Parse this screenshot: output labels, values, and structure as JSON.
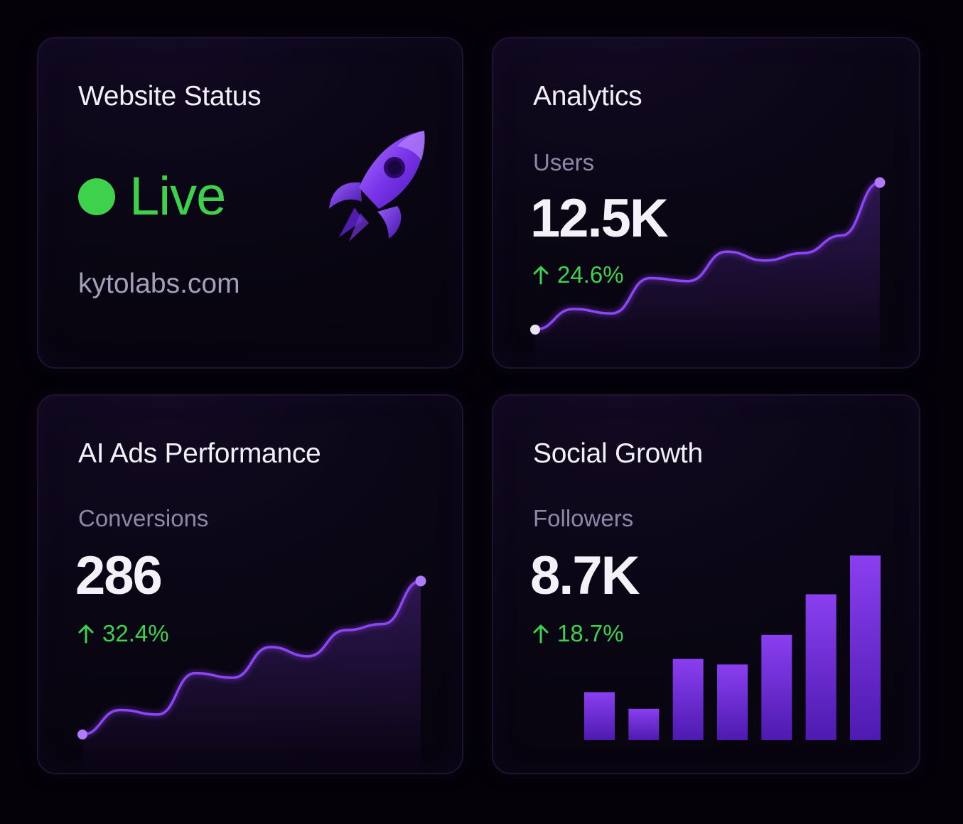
{
  "cards": {
    "status": {
      "title": "Website Status",
      "status_text": "Live",
      "status_color": "#3ed14c",
      "domain": "kytolabs.com",
      "icon": "rocket-icon"
    },
    "analytics": {
      "title": "Analytics",
      "metric_label": "Users",
      "metric_value": "12.5K",
      "delta": "24.6%",
      "delta_direction": "up",
      "delta_icon": "arrow-up-icon"
    },
    "ads": {
      "title": "AI Ads Performance",
      "metric_label": "Conversions",
      "metric_value": "286",
      "delta": "32.4%",
      "delta_direction": "up",
      "delta_icon": "arrow-up-icon"
    },
    "social": {
      "title": "Social Growth",
      "metric_label": "Followers",
      "metric_value": "8.7K",
      "delta": "18.7%",
      "delta_direction": "up",
      "delta_icon": "arrow-up-icon"
    }
  },
  "colors": {
    "accent": "#8a3ff0",
    "positive": "#3ed14c",
    "background": "#040208"
  },
  "chart_data": [
    {
      "type": "line",
      "card": "analytics",
      "x": [
        0,
        1,
        2,
        3,
        4,
        5,
        6,
        7,
        8,
        9
      ],
      "values": [
        0,
        14,
        11,
        35,
        33,
        53,
        47,
        52,
        64,
        100
      ],
      "ylim": [
        0,
        100
      ],
      "grid": false
    },
    {
      "type": "line",
      "card": "ads",
      "x": [
        0,
        1,
        2,
        3,
        4,
        5,
        6,
        7,
        8,
        9
      ],
      "values": [
        0,
        16,
        13,
        40,
        37,
        57,
        51,
        68,
        72,
        100
      ],
      "ylim": [
        0,
        100
      ],
      "grid": false
    },
    {
      "type": "bar",
      "card": "social",
      "values": [
        26,
        17,
        44,
        41,
        57,
        79,
        100
      ],
      "ylim": [
        0,
        100
      ],
      "grid": false
    }
  ]
}
